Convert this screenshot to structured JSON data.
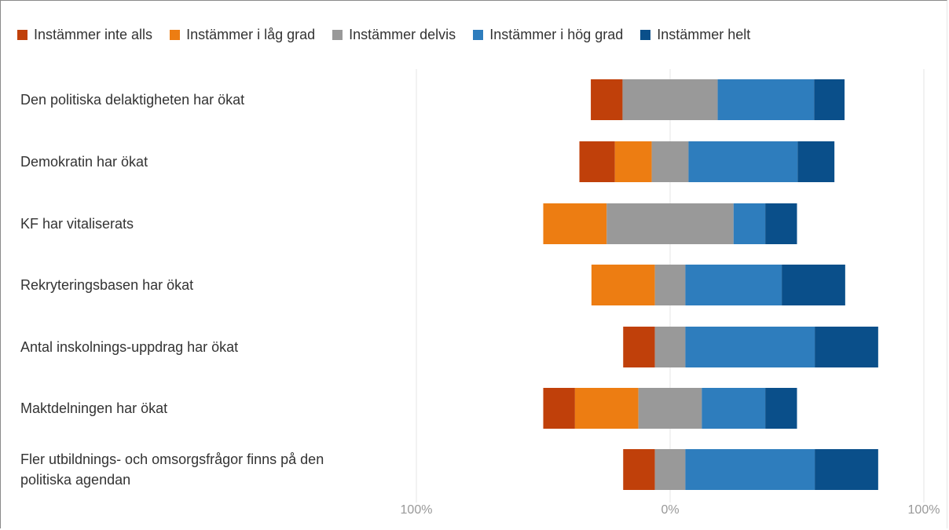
{
  "chart_data": {
    "type": "bar",
    "subtype": "diverging-stacked",
    "series": [
      {
        "name": "Instämmer inte alls",
        "color": "#c0400a",
        "values": [
          12.5,
          14,
          0,
          0,
          12.5,
          12.5,
          12.5
        ]
      },
      {
        "name": "Instämmer i låg grad",
        "color": "#ed7d12",
        "values": [
          0,
          14.5,
          25,
          25,
          0,
          25,
          0
        ]
      },
      {
        "name": "Instämmer delvis",
        "color": "#999999",
        "values": [
          37.5,
          14.5,
          50,
          12,
          12,
          25,
          12
        ]
      },
      {
        "name": "Instämmer i hög grad",
        "color": "#2e7dbd",
        "values": [
          38,
          43,
          12.5,
          38,
          51,
          25,
          51
        ]
      },
      {
        "name": "Instämmer helt",
        "color": "#0a4f8a",
        "values": [
          12,
          14.5,
          12.5,
          25,
          25,
          12.5,
          25
        ]
      }
    ],
    "categories": [
      "Den politiska delaktigheten har ökat",
      "Demokratin har ökat",
      "KF har vitaliserats",
      "Rekryteringsbasen har ökat",
      "Antal inskolnings-uppdrag har ökat",
      "Maktdelningen har ökat",
      "Fler utbildnings- och omsorgsfrågor finns på den politiska agendan"
    ],
    "x_ticks": [
      "100%",
      "0%",
      "100%"
    ],
    "xlim": [
      -100,
      100
    ],
    "grid": true,
    "legend_position": "top",
    "orientation": "horizontal"
  }
}
